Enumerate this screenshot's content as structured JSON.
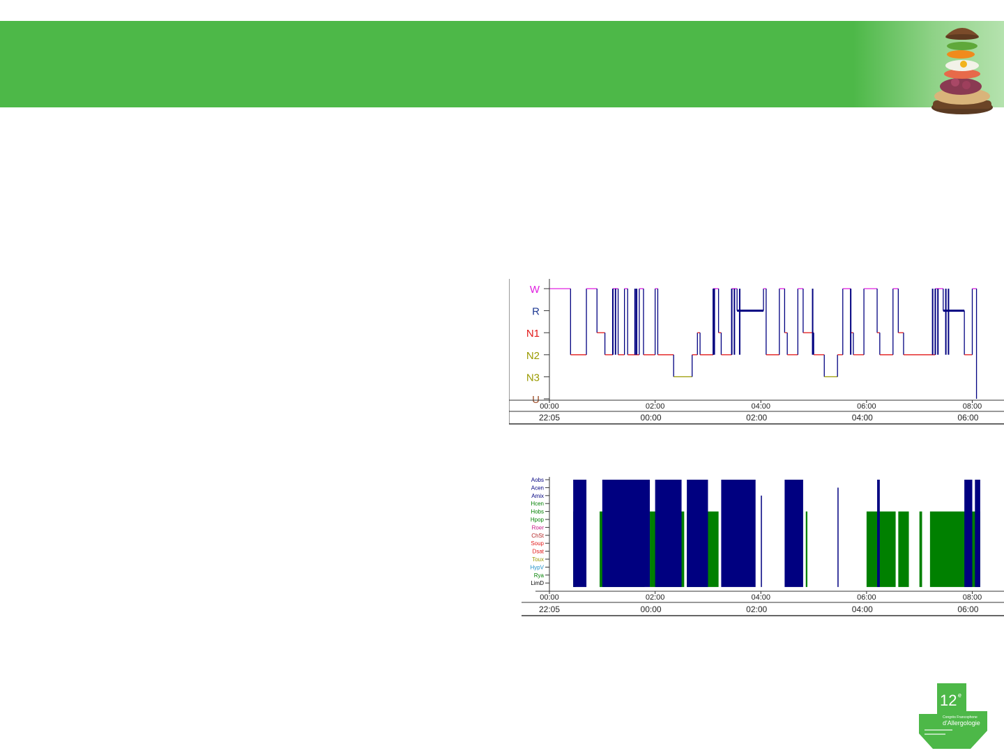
{
  "colors": {
    "header_green": "#4db848",
    "trace_blue": "#000080",
    "trace_red": "#e21818",
    "trace_olive": "#9a9a00",
    "event_green": "#008000"
  },
  "hypnogram": {
    "title": "",
    "xlabel": "",
    "ylabel": "",
    "stages": [
      {
        "label": "W",
        "color": "#e020e0"
      },
      {
        "label": "R",
        "color": "#1f3a93"
      },
      {
        "label": "N1",
        "color": "#e21818"
      },
      {
        "label": "N2",
        "color": "#9a9a00"
      },
      {
        "label": "N3",
        "color": "#9a9a00"
      },
      {
        "label": "U",
        "color": "#a0522d"
      }
    ],
    "axis_top_ticks": [
      "00:00",
      "02:00",
      "04:00",
      "06:00",
      "08:00"
    ],
    "axis_bottom_ticks": [
      "22:05",
      "00:00",
      "02:00",
      "04:00",
      "06:00"
    ]
  },
  "events": {
    "title": "",
    "labels": [
      {
        "label": "Aobs",
        "color": "#000080"
      },
      {
        "label": "Acen",
        "color": "#000080"
      },
      {
        "label": "Amix",
        "color": "#000080"
      },
      {
        "label": "Hcen",
        "color": "#008000"
      },
      {
        "label": "Hobs",
        "color": "#008000"
      },
      {
        "label": "Hpop",
        "color": "#008000"
      },
      {
        "label": "Roer",
        "color": "#c71585"
      },
      {
        "label": "ChSt",
        "color": "#b22222"
      },
      {
        "label": "Soup",
        "color": "#e21818"
      },
      {
        "label": "Dsat",
        "color": "#e21818"
      },
      {
        "label": "Toux",
        "color": "#9a9a00"
      },
      {
        "label": "HypV",
        "color": "#1e90c8"
      },
      {
        "label": "Rya",
        "color": "#008000"
      },
      {
        "label": "LimD",
        "color": "#000000"
      }
    ],
    "axis_top_ticks": [
      "00:00",
      "02:00",
      "04:00",
      "06:00",
      "08:00"
    ],
    "axis_bottom_ticks": [
      "22:05",
      "00:00",
      "02:00",
      "04:00",
      "06:00"
    ]
  },
  "chart_data": [
    {
      "type": "line",
      "xunit": "hours from 00:00",
      "yunit": "stage index (0=W,1=R,2=N1,3=N2,4=N3,5=U)",
      "xlim": [
        0,
        8.6
      ],
      "points": [
        [
          0,
          0
        ],
        [
          0.4,
          0
        ],
        [
          0.4,
          3
        ],
        [
          0.7,
          3
        ],
        [
          0.7,
          0
        ],
        [
          0.9,
          0
        ],
        [
          0.9,
          2
        ],
        [
          1.05,
          2
        ],
        [
          1.05,
          3
        ],
        [
          1.2,
          3
        ],
        [
          1.2,
          0
        ],
        [
          1.3,
          0
        ],
        [
          1.3,
          3
        ],
        [
          1.42,
          3
        ],
        [
          1.42,
          0
        ],
        [
          1.48,
          0
        ],
        [
          1.48,
          3
        ],
        [
          1.7,
          3
        ],
        [
          1.7,
          0
        ],
        [
          1.78,
          0
        ],
        [
          1.78,
          3
        ],
        [
          2.0,
          3
        ],
        [
          2.0,
          0
        ],
        [
          2.05,
          0
        ],
        [
          2.05,
          3
        ],
        [
          2.35,
          3
        ],
        [
          2.35,
          4
        ],
        [
          2.7,
          4
        ],
        [
          2.7,
          3
        ],
        [
          2.8,
          3
        ],
        [
          2.8,
          2
        ],
        [
          2.85,
          2
        ],
        [
          2.85,
          3
        ],
        [
          3.1,
          3
        ],
        [
          3.1,
          0
        ],
        [
          3.2,
          0
        ],
        [
          3.2,
          2
        ],
        [
          3.25,
          2
        ],
        [
          3.25,
          3
        ],
        [
          3.45,
          3
        ],
        [
          3.45,
          0
        ],
        [
          3.55,
          0
        ],
        [
          3.55,
          1
        ],
        [
          4.05,
          1
        ],
        [
          4.05,
          0
        ],
        [
          4.1,
          0
        ],
        [
          4.1,
          3
        ],
        [
          4.35,
          3
        ],
        [
          4.35,
          0
        ],
        [
          4.45,
          0
        ],
        [
          4.45,
          2
        ],
        [
          4.5,
          2
        ],
        [
          4.5,
          3
        ],
        [
          4.7,
          3
        ],
        [
          4.7,
          0
        ],
        [
          4.8,
          0
        ],
        [
          4.8,
          2
        ],
        [
          5.0,
          2
        ],
        [
          5.0,
          3
        ],
        [
          5.2,
          3
        ],
        [
          5.2,
          4
        ],
        [
          5.45,
          4
        ],
        [
          5.45,
          3
        ],
        [
          5.55,
          3
        ],
        [
          5.55,
          0
        ],
        [
          5.7,
          0
        ],
        [
          5.7,
          2
        ],
        [
          5.75,
          2
        ],
        [
          5.75,
          3
        ],
        [
          5.95,
          3
        ],
        [
          5.95,
          0
        ],
        [
          6.2,
          0
        ],
        [
          6.2,
          2
        ],
        [
          6.25,
          2
        ],
        [
          6.25,
          3
        ],
        [
          6.5,
          3
        ],
        [
          6.5,
          0
        ],
        [
          6.6,
          0
        ],
        [
          6.6,
          2
        ],
        [
          6.7,
          2
        ],
        [
          6.7,
          3
        ],
        [
          7.3,
          3
        ],
        [
          7.3,
          0
        ],
        [
          7.45,
          0
        ],
        [
          7.45,
          1
        ],
        [
          7.85,
          1
        ],
        [
          7.85,
          3
        ],
        [
          8.0,
          3
        ],
        [
          8.0,
          0
        ],
        [
          8.08,
          0
        ],
        [
          8.08,
          5
        ]
      ],
      "dense_spikes_blue": [
        1.2,
        1.25,
        1.62,
        1.65,
        3.1,
        3.12,
        3.45,
        3.5,
        3.6,
        4.98,
        5.7,
        7.25,
        7.3,
        7.35,
        7.5,
        7.55
      ],
      "markers": [
        {
          "x": 3.55,
          "x2": 4.05,
          "y": 1
        },
        {
          "x": 7.45,
          "x2": 7.85,
          "y": 1
        }
      ]
    },
    {
      "type": "bar",
      "xunit": "hours from 00:00",
      "xlim": [
        0,
        8.6
      ],
      "blue_events": [
        {
          "x": [
            0.45,
            0.7
          ],
          "top": 0,
          "bottom": 13.5
        },
        {
          "x": [
            1.0,
            1.9
          ],
          "top": 0,
          "bottom": 13.5
        },
        {
          "x": [
            2.0,
            2.5
          ],
          "top": 0,
          "bottom": 13.5
        },
        {
          "x": [
            2.6,
            3.0
          ],
          "top": 0,
          "bottom": 13.5
        },
        {
          "x": [
            3.25,
            3.9
          ],
          "top": 0,
          "bottom": 13.5
        },
        {
          "x": [
            4.0,
            4.02
          ],
          "top": 2,
          "bottom": 13.5
        },
        {
          "x": [
            4.45,
            4.8
          ],
          "top": 0,
          "bottom": 13.5
        },
        {
          "x": [
            5.45,
            5.47
          ],
          "top": 1,
          "bottom": 13.5
        },
        {
          "x": [
            6.2,
            6.25
          ],
          "top": 0,
          "bottom": 13.5
        },
        {
          "x": [
            7.85,
            8.0
          ],
          "top": 0,
          "bottom": 13.5
        },
        {
          "x": [
            8.05,
            8.15
          ],
          "top": 0,
          "bottom": 13.5
        }
      ],
      "green_events": [
        {
          "x": [
            0.45,
            0.5
          ],
          "top": 4,
          "bottom": 13.5
        },
        {
          "x": [
            0.95,
            1.8
          ],
          "top": 4,
          "bottom": 13.5
        },
        {
          "x": [
            1.9,
            2.55
          ],
          "top": 4,
          "bottom": 13.5
        },
        {
          "x": [
            2.6,
            3.2
          ],
          "top": 4,
          "bottom": 13.5
        },
        {
          "x": [
            4.85,
            4.88
          ],
          "top": 4,
          "bottom": 13.5
        },
        {
          "x": [
            6.0,
            6.55
          ],
          "top": 4,
          "bottom": 13.5
        },
        {
          "x": [
            6.6,
            6.8
          ],
          "top": 4,
          "bottom": 13.5
        },
        {
          "x": [
            7.0,
            7.05
          ],
          "top": 4,
          "bottom": 13.5
        },
        {
          "x": [
            7.2,
            8.15
          ],
          "top": 4,
          "bottom": 13.5
        }
      ]
    }
  ]
}
